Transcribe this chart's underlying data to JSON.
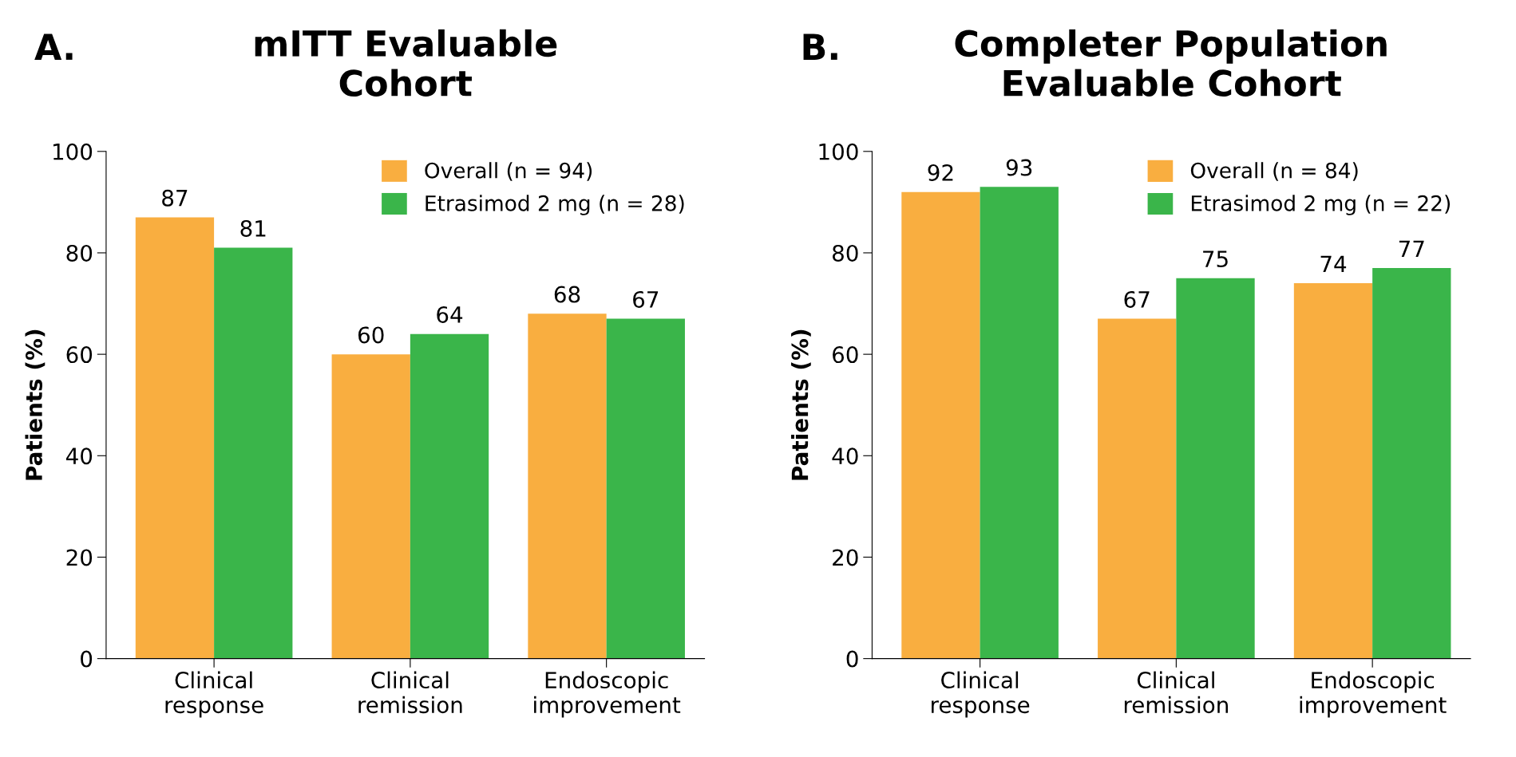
{
  "chart_data": [
    {
      "type": "bar",
      "title": "mITT Evaluable\nCohort",
      "annotations": [
        "A."
      ],
      "ylabel": "Patients (%)",
      "categories": [
        "Clinical\nresponse",
        "Clinical\nremission",
        "Endoscopic\nimprovement"
      ],
      "series": [
        {
          "name": "Overall (n = 94)",
          "color": "#f9ae40",
          "values": [
            87,
            60,
            68
          ]
        },
        {
          "name": "Etrasimod 2 mg (n = 28)",
          "color": "#3ab54a",
          "values": [
            81,
            64,
            67
          ]
        }
      ],
      "ylim": [
        0,
        100
      ],
      "yticks": [
        0,
        20,
        40,
        60,
        80,
        100
      ],
      "data_labels": true,
      "legend": "top right",
      "grid": false
    },
    {
      "type": "bar",
      "title": "Completer Population\nEvaluable Cohort",
      "annotations": [
        "B."
      ],
      "ylabel": "Patients (%)",
      "categories": [
        "Clinical\nresponse",
        "Clinical\nremission",
        "Endoscopic\nimprovement"
      ],
      "series": [
        {
          "name": "Overall (n = 84)",
          "color": "#f9ae40",
          "values": [
            92,
            67,
            74
          ]
        },
        {
          "name": "Etrasimod 2 mg (n = 22)",
          "color": "#3ab54a",
          "values": [
            93,
            75,
            77
          ]
        }
      ],
      "ylim": [
        0,
        100
      ],
      "yticks": [
        0,
        20,
        40,
        60,
        80,
        100
      ],
      "data_labels": true,
      "legend": "top right",
      "grid": false
    }
  ]
}
